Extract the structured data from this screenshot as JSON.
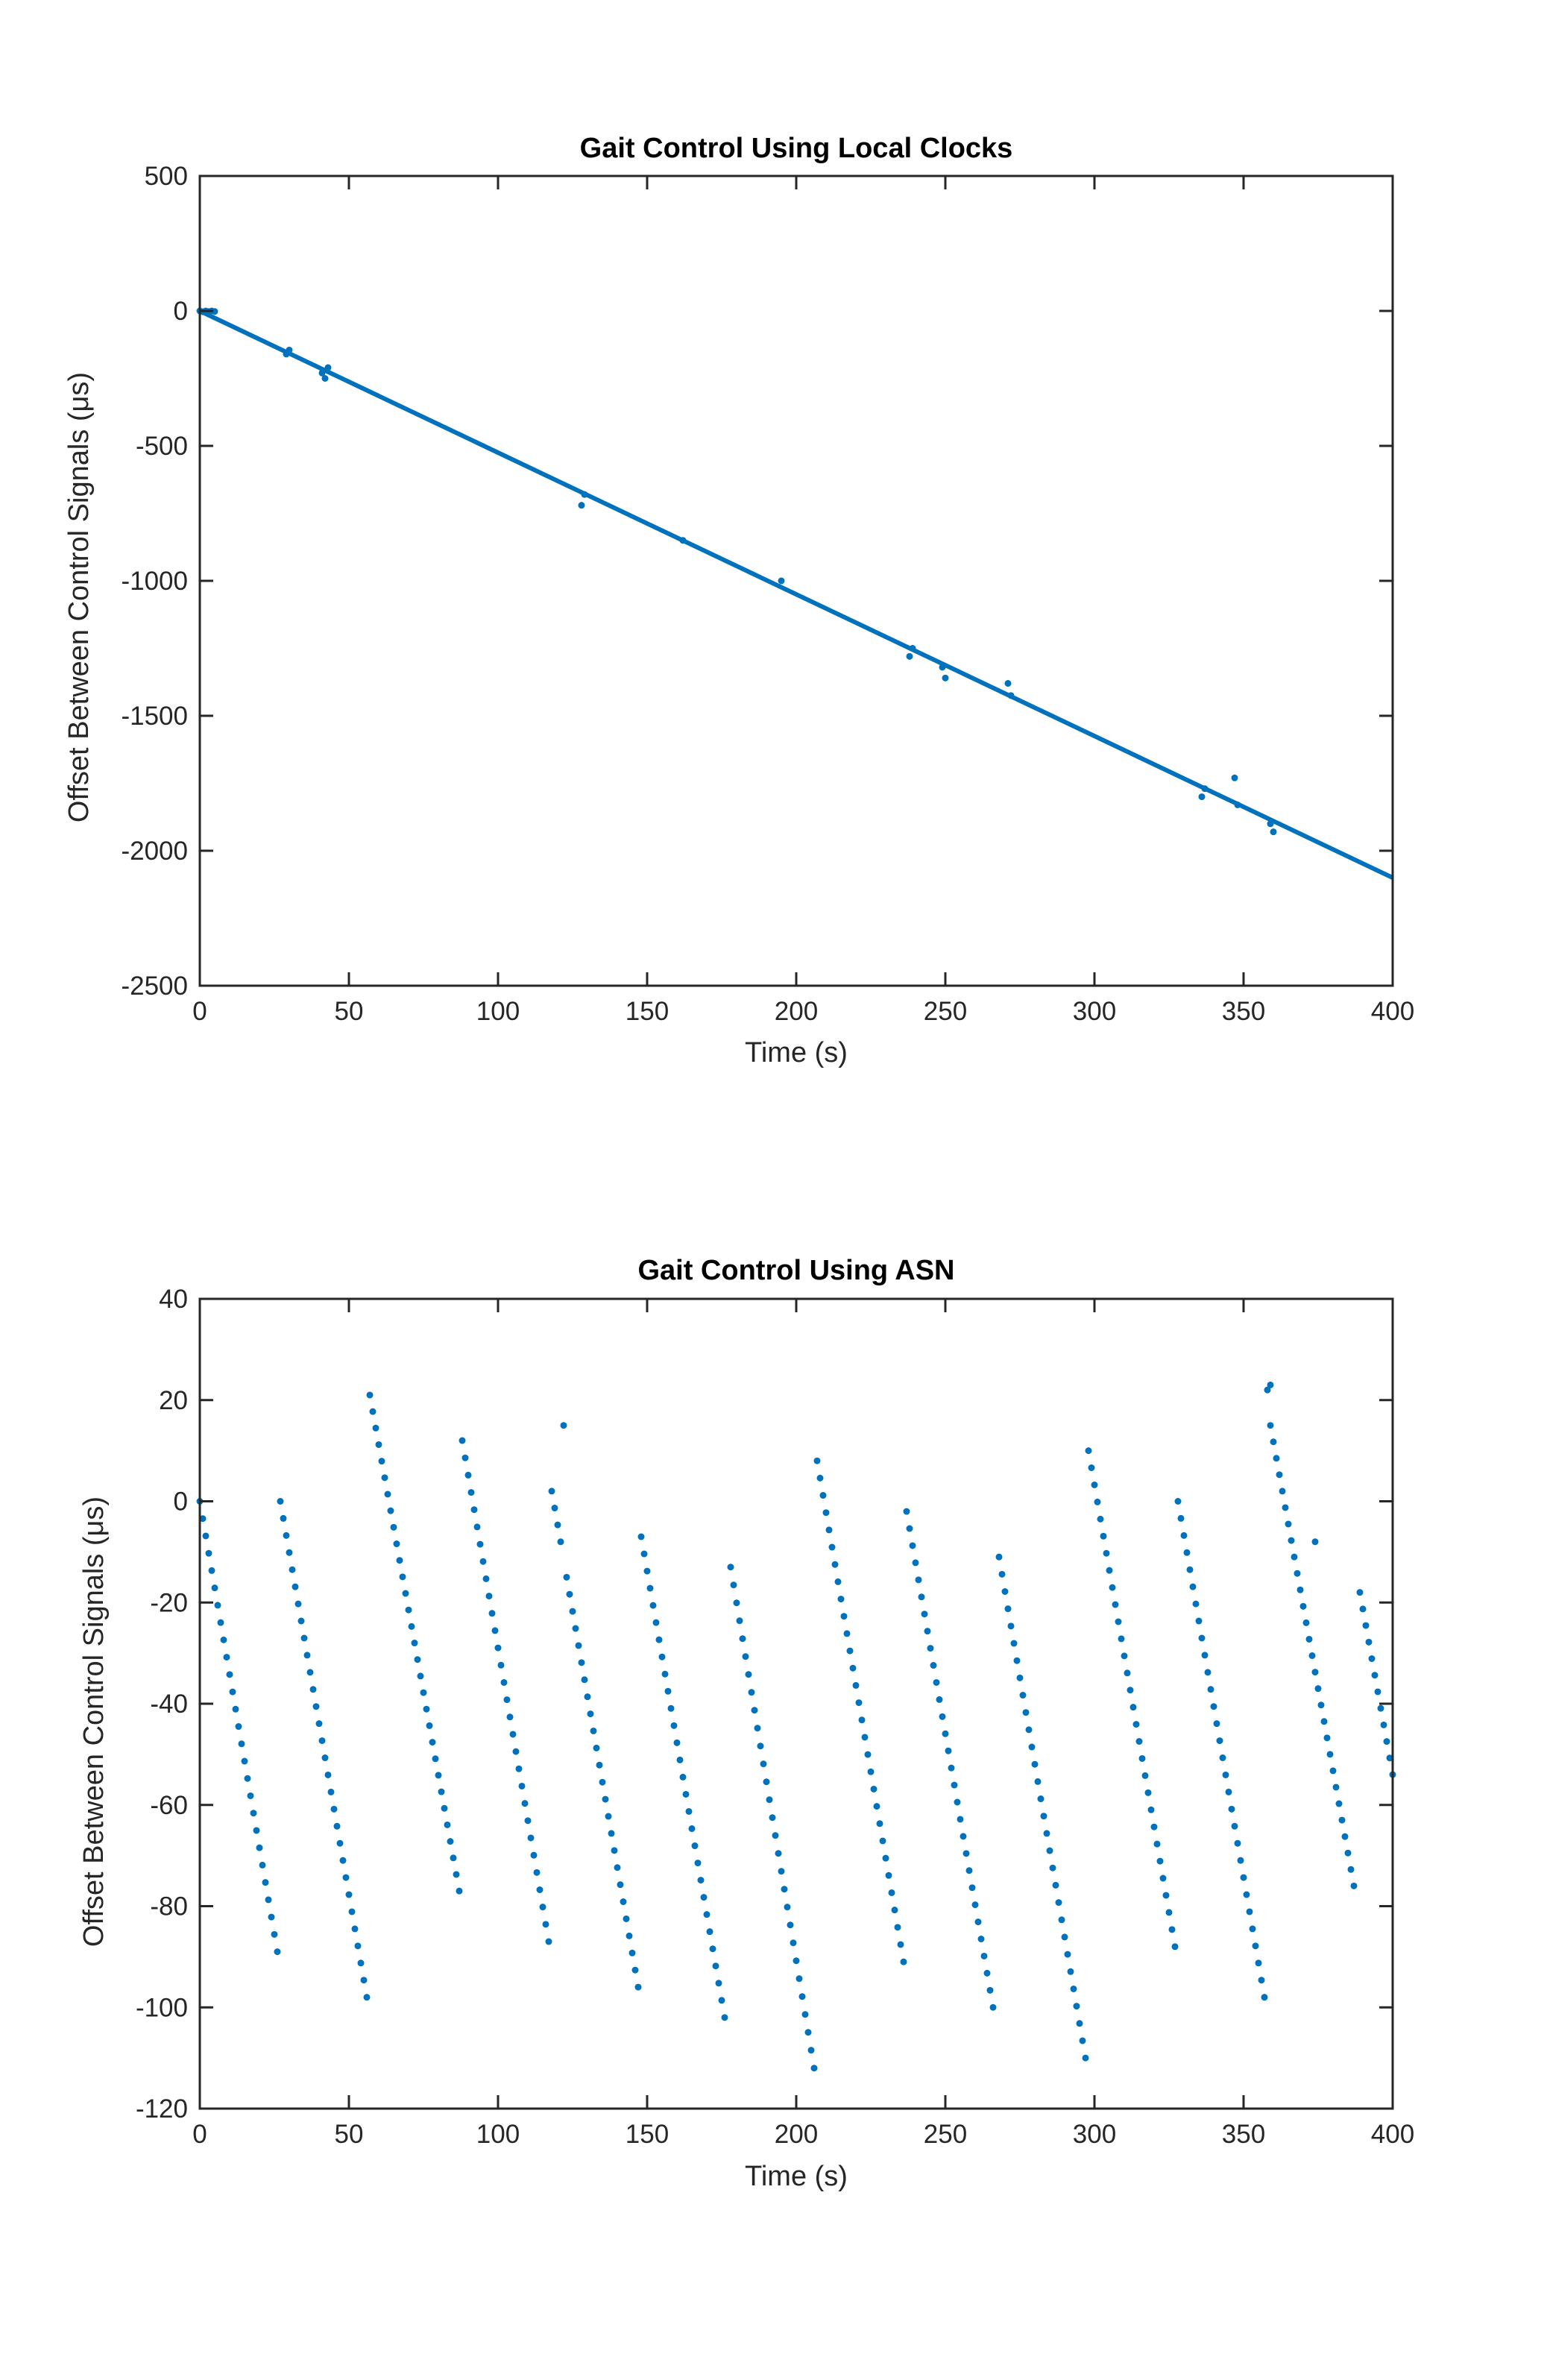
{
  "colors": {
    "series": "#0072BD",
    "axis": "#262626",
    "background": "#ffffff"
  },
  "chart_data": [
    {
      "type": "scatter",
      "title": "Gait Control Using Local Clocks",
      "xlabel": "Time (s)",
      "ylabel": "Offset Between Control Signals (μs)",
      "xlim": [
        0,
        400
      ],
      "ylim": [
        -2500,
        500
      ],
      "xticks": [
        0,
        50,
        100,
        150,
        200,
        250,
        300,
        350,
        400
      ],
      "yticks": [
        500,
        0,
        -500,
        -1000,
        -1500,
        -2000,
        -2500
      ],
      "grid": false,
      "legend": "none",
      "series": [
        {
          "style": "line",
          "x": [
            0,
            400
          ],
          "y": [
            0,
            -2100
          ]
        },
        {
          "style": "markers",
          "x": [
            0,
            1,
            2,
            3,
            4,
            5,
            29,
            30,
            41,
            42,
            43,
            128,
            129,
            162,
            195,
            238,
            239,
            249,
            250,
            271,
            272,
            336,
            337,
            347,
            348,
            359,
            360
          ],
          "y": [
            0,
            -3,
            0,
            -2,
            0,
            -2,
            -160,
            -145,
            -230,
            -250,
            -210,
            -720,
            -680,
            -850,
            -1000,
            -1280,
            -1250,
            -1320,
            -1360,
            -1380,
            -1425,
            -1800,
            -1770,
            -1730,
            -1830,
            -1900,
            -1930
          ]
        }
      ]
    },
    {
      "type": "scatter",
      "title": "Gait Control Using ASN",
      "xlabel": "Time (s)",
      "ylabel": "Offset Between Control Signals (μs)",
      "xlim": [
        0,
        400
      ],
      "ylim": [
        -120,
        40
      ],
      "xticks": [
        0,
        50,
        100,
        150,
        200,
        250,
        300,
        350,
        400
      ],
      "yticks": [
        40,
        20,
        0,
        -20,
        -40,
        -60,
        -80,
        -100,
        -120
      ],
      "grid": false,
      "legend": "none",
      "segments": [
        {
          "x0": 0,
          "y0": 0,
          "x1": 26,
          "y1": -89,
          "n": 27
        },
        {
          "x0": 27,
          "y0": 0,
          "x1": 56,
          "y1": -98,
          "n": 30
        },
        {
          "x0": 57,
          "y0": 21,
          "x1": 87,
          "y1": -77,
          "n": 31
        },
        {
          "x0": 88,
          "y0": 12,
          "x1": 117,
          "y1": -87,
          "n": 30
        },
        {
          "x0": 118,
          "y0": 2,
          "x1": 121,
          "y1": -8,
          "n": 4
        },
        {
          "x0": 123,
          "y0": -15,
          "x1": 147,
          "y1": -96,
          "n": 25
        },
        {
          "x0": 148,
          "y0": -7,
          "x1": 176,
          "y1": -102,
          "n": 29
        },
        {
          "x0": 178,
          "y0": -13,
          "x1": 206,
          "y1": -112,
          "n": 29
        },
        {
          "x0": 207,
          "y0": 8,
          "x1": 236,
          "y1": -91,
          "n": 30
        },
        {
          "x0": 237,
          "y0": -2,
          "x1": 266,
          "y1": -100,
          "n": 30
        },
        {
          "x0": 268,
          "y0": -11,
          "x1": 297,
          "y1": -110,
          "n": 30
        },
        {
          "x0": 298,
          "y0": 10,
          "x1": 327,
          "y1": -88,
          "n": 30
        },
        {
          "x0": 328,
          "y0": 0,
          "x1": 357,
          "y1": -98,
          "n": 30
        },
        {
          "x0": 359,
          "y0": 15,
          "x1": 387,
          "y1": -76,
          "n": 29
        },
        {
          "x0": 389,
          "y0": -18,
          "x1": 400,
          "y1": -54,
          "n": 12
        }
      ],
      "extra_points": {
        "x": [
          358,
          359,
          122,
          374
        ],
        "y": [
          22,
          23,
          15,
          -8
        ]
      }
    }
  ]
}
